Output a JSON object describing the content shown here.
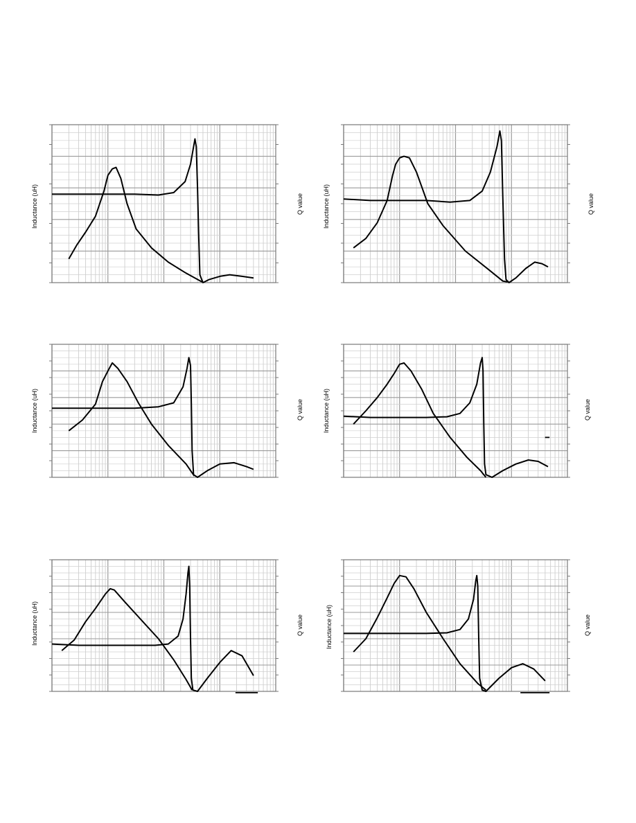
{
  "page": {
    "background": "#ffffff"
  },
  "chart_data": [
    {
      "type": "line",
      "xscale": "log",
      "grid": true,
      "ylabel": "Inductance (uH)",
      "y2label": "Q value",
      "series": [
        {
          "points": [
            [
              0.2,
              0.15
            ],
            [
              0.28,
              0.24
            ],
            [
              0.4,
              0.32
            ],
            [
              0.6,
              0.42
            ],
            [
              0.85,
              0.58
            ],
            [
              1.0,
              0.68
            ],
            [
              1.2,
              0.72
            ],
            [
              1.4,
              0.73
            ],
            [
              1.7,
              0.66
            ],
            [
              2.2,
              0.5
            ],
            [
              3.2,
              0.34
            ],
            [
              6,
              0.22
            ],
            [
              12,
              0.13
            ],
            [
              25,
              0.06
            ],
            [
              40,
              0.02
            ],
            [
              48,
              0.005
            ]
          ]
        },
        {
          "points": [
            [
              0.1,
              0.56
            ],
            [
              0.3,
              0.56
            ],
            [
              1.0,
              0.56
            ],
            [
              3.0,
              0.56
            ],
            [
              8,
              0.555
            ],
            [
              15,
              0.57
            ],
            [
              24,
              0.64
            ],
            [
              30,
              0.75
            ],
            [
              34,
              0.86
            ],
            [
              36,
              0.91
            ],
            [
              38,
              0.86
            ],
            [
              40,
              0.6
            ],
            [
              42,
              0.3
            ],
            [
              44,
              0.05
            ],
            [
              50,
              0.0
            ],
            [
              65,
              0.02
            ],
            [
              100,
              0.04
            ],
            [
              150,
              0.05
            ],
            [
              250,
              0.04
            ],
            [
              400,
              0.03
            ]
          ]
        }
      ]
    },
    {
      "type": "line",
      "xscale": "log",
      "grid": true,
      "ylabel": "Inductance (uH)",
      "y2label": "Q value",
      "series": [
        {
          "points": [
            [
              0.15,
              0.22
            ],
            [
              0.25,
              0.28
            ],
            [
              0.4,
              0.38
            ],
            [
              0.6,
              0.52
            ],
            [
              0.75,
              0.68
            ],
            [
              0.85,
              0.75
            ],
            [
              1.0,
              0.79
            ],
            [
              1.2,
              0.8
            ],
            [
              1.5,
              0.79
            ],
            [
              2.0,
              0.7
            ],
            [
              3.2,
              0.5
            ],
            [
              6,
              0.36
            ],
            [
              15,
              0.2
            ],
            [
              40,
              0.08
            ],
            [
              70,
              0.01
            ],
            [
              85,
              0.005
            ]
          ]
        },
        {
          "points": [
            [
              0.1,
              0.53
            ],
            [
              0.3,
              0.52
            ],
            [
              1.0,
              0.52
            ],
            [
              3.0,
              0.52
            ],
            [
              8,
              0.51
            ],
            [
              18,
              0.52
            ],
            [
              30,
              0.58
            ],
            [
              42,
              0.7
            ],
            [
              55,
              0.86
            ],
            [
              62,
              0.96
            ],
            [
              66,
              0.9
            ],
            [
              70,
              0.55
            ],
            [
              75,
              0.15
            ],
            [
              80,
              0.02
            ],
            [
              90,
              0.0
            ],
            [
              120,
              0.03
            ],
            [
              180,
              0.09
            ],
            [
              260,
              0.13
            ],
            [
              350,
              0.12
            ],
            [
              450,
              0.1
            ]
          ]
        }
      ]
    },
    {
      "type": "line",
      "xscale": "log",
      "grid": true,
      "ylabel": "Inductance (uH)",
      "y2label": "Q value",
      "series": [
        {
          "points": [
            [
              0.2,
              0.35
            ],
            [
              0.35,
              0.43
            ],
            [
              0.6,
              0.55
            ],
            [
              0.8,
              0.72
            ],
            [
              1.0,
              0.8
            ],
            [
              1.2,
              0.86
            ],
            [
              1.5,
              0.82
            ],
            [
              2.2,
              0.72
            ],
            [
              3.5,
              0.56
            ],
            [
              6,
              0.4
            ],
            [
              12,
              0.24
            ],
            [
              25,
              0.1
            ],
            [
              35,
              0.01
            ]
          ]
        },
        {
          "points": [
            [
              0.1,
              0.52
            ],
            [
              0.3,
              0.52
            ],
            [
              1.0,
              0.52
            ],
            [
              3.0,
              0.52
            ],
            [
              8,
              0.53
            ],
            [
              15,
              0.56
            ],
            [
              22,
              0.68
            ],
            [
              26,
              0.82
            ],
            [
              28,
              0.9
            ],
            [
              30,
              0.84
            ],
            [
              31,
              0.55
            ],
            [
              32,
              0.2
            ],
            [
              34,
              0.02
            ],
            [
              40,
              0.0
            ],
            [
              60,
              0.05
            ],
            [
              100,
              0.1
            ],
            [
              180,
              0.11
            ],
            [
              300,
              0.08
            ],
            [
              400,
              0.06
            ]
          ]
        }
      ]
    },
    {
      "type": "line",
      "xscale": "log",
      "grid": true,
      "ylabel": "Inductance (uH)",
      "y2label": "Q value",
      "series": [
        {
          "points": [
            [
              0.15,
              0.4
            ],
            [
              0.25,
              0.5
            ],
            [
              0.4,
              0.6
            ],
            [
              0.6,
              0.7
            ],
            [
              0.8,
              0.78
            ],
            [
              1.0,
              0.85
            ],
            [
              1.2,
              0.86
            ],
            [
              1.6,
              0.8
            ],
            [
              2.5,
              0.66
            ],
            [
              4,
              0.48
            ],
            [
              8,
              0.3
            ],
            [
              16,
              0.15
            ],
            [
              28,
              0.05
            ],
            [
              35,
              0.0
            ]
          ]
        },
        {
          "points": [
            [
              0.1,
              0.46
            ],
            [
              0.3,
              0.45
            ],
            [
              1.0,
              0.45
            ],
            [
              3.0,
              0.45
            ],
            [
              7,
              0.455
            ],
            [
              12,
              0.48
            ],
            [
              18,
              0.56
            ],
            [
              24,
              0.7
            ],
            [
              28,
              0.86
            ],
            [
              30,
              0.9
            ],
            [
              31,
              0.8
            ],
            [
              32,
              0.4
            ],
            [
              33,
              0.1
            ],
            [
              35,
              0.02
            ],
            [
              45,
              0.0
            ],
            [
              70,
              0.05
            ],
            [
              120,
              0.1
            ],
            [
              200,
              0.13
            ],
            [
              300,
              0.12
            ],
            [
              450,
              0.08
            ]
          ]
        }
      ]
    },
    {
      "type": "line",
      "xscale": "log",
      "grid": true,
      "ylabel": "Inductance (uH)",
      "y2label": "Q value",
      "series": [
        {
          "points": [
            [
              0.15,
              0.31
            ],
            [
              0.25,
              0.39
            ],
            [
              0.4,
              0.53
            ],
            [
              0.6,
              0.63
            ],
            [
              0.9,
              0.74
            ],
            [
              1.1,
              0.78
            ],
            [
              1.3,
              0.77
            ],
            [
              2.0,
              0.68
            ],
            [
              4,
              0.54
            ],
            [
              8,
              0.4
            ],
            [
              15,
              0.24
            ],
            [
              25,
              0.09
            ],
            [
              32,
              0.01
            ]
          ]
        },
        {
          "points": [
            [
              0.1,
              0.36
            ],
            [
              0.3,
              0.35
            ],
            [
              1.0,
              0.35
            ],
            [
              3.0,
              0.35
            ],
            [
              7,
              0.35
            ],
            [
              12,
              0.36
            ],
            [
              18,
              0.42
            ],
            [
              22,
              0.55
            ],
            [
              25,
              0.74
            ],
            [
              27,
              0.9
            ],
            [
              28,
              0.95
            ],
            [
              29,
              0.8
            ],
            [
              30,
              0.4
            ],
            [
              31,
              0.1
            ],
            [
              33,
              0.01
            ],
            [
              40,
              0.0
            ],
            [
              60,
              0.1
            ],
            [
              100,
              0.22
            ],
            [
              160,
              0.31
            ],
            [
              250,
              0.27
            ],
            [
              400,
              0.12
            ]
          ]
        }
      ]
    },
    {
      "type": "line",
      "xscale": "log",
      "grid": true,
      "ylabel": "Inductance (uH)",
      "y2label": "Q value",
      "series": [
        {
          "points": [
            [
              0.15,
              0.3
            ],
            [
              0.25,
              0.4
            ],
            [
              0.4,
              0.56
            ],
            [
              0.6,
              0.71
            ],
            [
              0.8,
              0.82
            ],
            [
              1.0,
              0.88
            ],
            [
              1.3,
              0.87
            ],
            [
              1.8,
              0.78
            ],
            [
              3,
              0.6
            ],
            [
              6,
              0.4
            ],
            [
              12,
              0.21
            ],
            [
              25,
              0.06
            ],
            [
              35,
              0.01
            ]
          ]
        },
        {
          "points": [
            [
              0.1,
              0.44
            ],
            [
              0.3,
              0.44
            ],
            [
              1.0,
              0.44
            ],
            [
              3.0,
              0.44
            ],
            [
              7,
              0.445
            ],
            [
              12,
              0.47
            ],
            [
              17,
              0.55
            ],
            [
              21,
              0.7
            ],
            [
              23,
              0.84
            ],
            [
              24,
              0.88
            ],
            [
              25,
              0.8
            ],
            [
              26,
              0.4
            ],
            [
              27,
              0.1
            ],
            [
              30,
              0.01
            ],
            [
              35,
              0.0
            ],
            [
              60,
              0.1
            ],
            [
              100,
              0.18
            ],
            [
              160,
              0.21
            ],
            [
              250,
              0.17
            ],
            [
              400,
              0.08
            ]
          ]
        }
      ]
    }
  ]
}
